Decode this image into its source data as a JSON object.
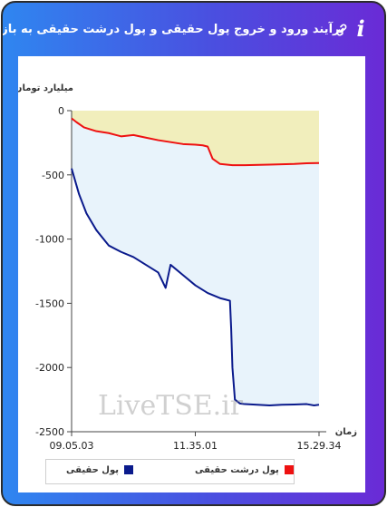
{
  "header": {
    "title": "برآیند ورود و خروج پول حقیقی و پول درشت حقیقی به بازار",
    "info_icon": "i",
    "link_icon": "link-icon"
  },
  "watermark": "LiveTSE.ir",
  "chart_data": {
    "type": "area",
    "title": "",
    "ylabel": "میلیارد تومان",
    "xlabel": "زمان",
    "ylim": [
      -2500,
      0
    ],
    "yticks": [
      0,
      -500,
      -1000,
      -1500,
      -2000,
      -2500
    ],
    "ytick_labels": [
      "0",
      "-500",
      "-1000",
      "-1500",
      "-2000",
      "-2500"
    ],
    "xlim": [
      0,
      1
    ],
    "x_tick_labels": [
      {
        "label": "09.05.03",
        "pos": 0
      },
      {
        "label": "11.35.01",
        "pos": 0.5
      },
      {
        "label": "15.29.34",
        "pos": 1
      }
    ],
    "grid": false,
    "legend_position": "bottom",
    "series": [
      {
        "name": "پول درشت حقیقی",
        "color": "#ee1111",
        "fill": "#f1eebc",
        "x": [
          0,
          0.02,
          0.05,
          0.1,
          0.15,
          0.2,
          0.25,
          0.3,
          0.35,
          0.4,
          0.45,
          0.5,
          0.53,
          0.55,
          0.57,
          0.6,
          0.65,
          0.7,
          0.8,
          0.9,
          0.95,
          1
        ],
        "values": [
          -60,
          -90,
          -130,
          -160,
          -175,
          -200,
          -190,
          -210,
          -230,
          -245,
          -260,
          -265,
          -270,
          -280,
          -375,
          -415,
          -425,
          -425,
          -420,
          -415,
          -410,
          -408
        ]
      },
      {
        "name": "پول حقیقی",
        "color": "#0a1a8c",
        "fill": "#e8f3fb",
        "x": [
          0,
          0.03,
          0.06,
          0.1,
          0.15,
          0.2,
          0.25,
          0.3,
          0.35,
          0.38,
          0.4,
          0.45,
          0.5,
          0.55,
          0.6,
          0.62,
          0.64,
          0.645,
          0.65,
          0.66,
          0.68,
          0.7,
          0.75,
          0.8,
          0.85,
          0.9,
          0.95,
          0.98,
          1
        ],
        "values": [
          -450,
          -650,
          -800,
          -930,
          -1050,
          -1100,
          -1140,
          -1200,
          -1260,
          -1380,
          -1200,
          -1280,
          -1360,
          -1420,
          -1460,
          -1470,
          -1480,
          -1700,
          -2000,
          -2250,
          -2280,
          -2285,
          -2290,
          -2295,
          -2290,
          -2288,
          -2285,
          -2295,
          -2290
        ]
      }
    ]
  }
}
